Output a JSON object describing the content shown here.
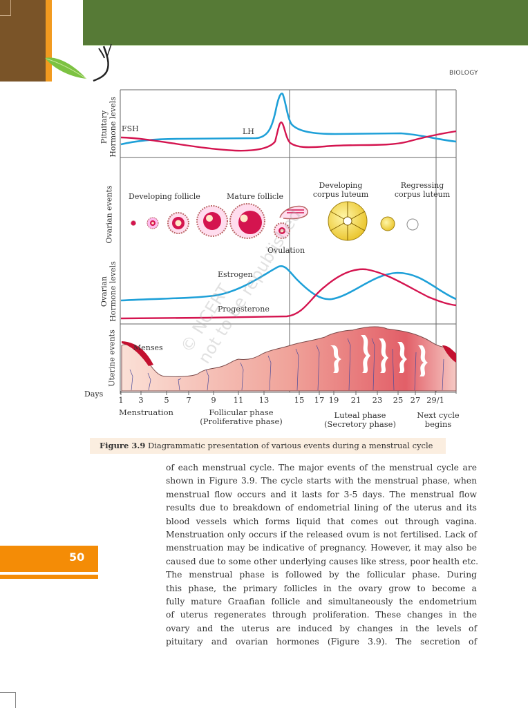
{
  "header": {
    "subject": "BIOLOGY",
    "brand_colors": {
      "brown": "#7a5428",
      "orange": "#f29a1f",
      "green": "#567a36"
    }
  },
  "figure": {
    "row_labels": {
      "pituitary": [
        "Pituitary",
        "Hormone levels"
      ],
      "ovarian_events": "Ovarian events",
      "ovarian_hormones": [
        "Ovarian",
        "Hormone levels"
      ],
      "uterine": "Uterine events"
    },
    "labels": {
      "fsh": "FSH",
      "lh": "LH",
      "developing_follicle": "Developing follicle",
      "mature_follicle": "Mature follicle",
      "ovulation": "Ovulation",
      "developing_corpus_luteum": [
        "Developing",
        "corpus luteum"
      ],
      "regressing_corpus_luteum": [
        "Regressing",
        "corpus luteum"
      ],
      "estrogen": "Estrogen",
      "progesterone": "Progesterone",
      "menses": "Menses"
    },
    "days_label": "Days",
    "day_ticks": [
      "1",
      "3",
      "5",
      "7",
      "9",
      "11",
      "13",
      "15",
      "17",
      "19",
      "21",
      "23",
      "25",
      "27",
      "29/1"
    ],
    "phases": {
      "menstruation": "Menstruation",
      "follicular": [
        "Follicular phase",
        "(Proliferative phase)"
      ],
      "luteal": [
        "Luteal phase",
        "(Secretory phase)"
      ],
      "next": [
        "Next cycle",
        "begins"
      ]
    },
    "series_colors": {
      "blue": "#1ea0d8",
      "red": "#d4144f"
    },
    "watermark": [
      "© NCERT",
      "not to be republished"
    ],
    "caption": {
      "number": "Figure 3.9",
      "text": "Diagrammatic presentation of various events during a menstrual cycle"
    }
  },
  "body": {
    "lines": [
      "of each menstrual cycle. The major events of the menstrual cycle are",
      "shown in Figure 3.9. The cycle starts with the menstrual phase, when",
      "menstrual flow occurs and it lasts for 3-5 days. The menstrual flow",
      "results due to breakdown of endometrial lining of the uterus and its",
      "blood vessels which forms liquid that comes out through vagina.",
      "Menstruation only occurs if the released ovum is not fertilised. Lack of",
      "menstruation may be indicative of pregnancy. However, it may also be",
      "caused due to some other underlying causes like stress, poor health etc.",
      "The menstrual phase is followed by the follicular phase. During",
      "this phase, the primary follicles in the ovary grow to become a",
      "fully mature Graafian follicle and simultaneously the endometrium",
      "of uterus regenerates through proliferation. These changes in the",
      "ovary and the uterus are induced by changes in the levels of",
      "pituitary and ovarian hormones (Figure 3.9). The secretion of"
    ]
  },
  "page_number": "50"
}
